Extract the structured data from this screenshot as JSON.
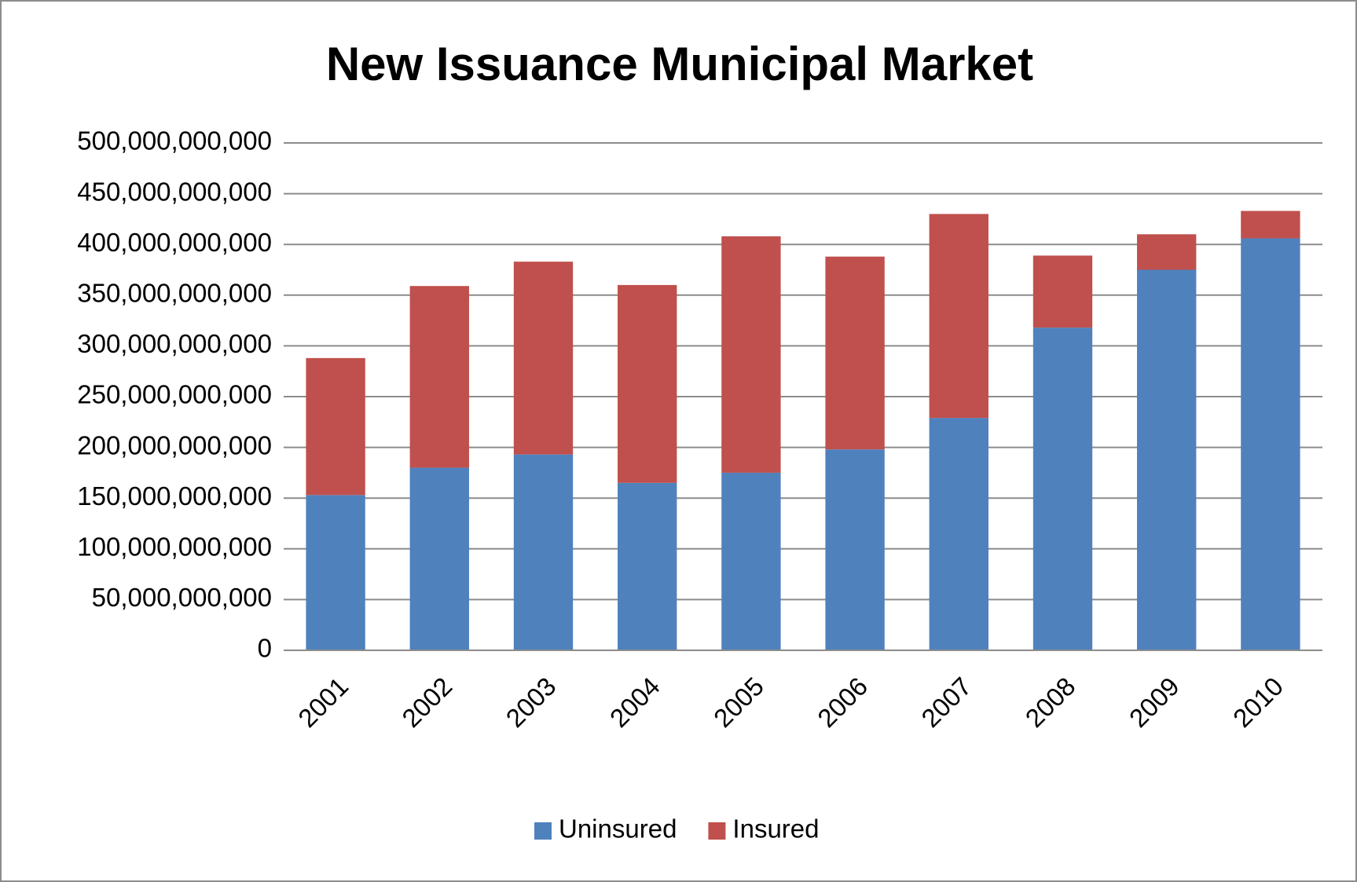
{
  "chart_data": {
    "type": "stacked_bar",
    "title": "New Issuance Municipal Market",
    "categories": [
      "2001",
      "2002",
      "2003",
      "2004",
      "2005",
      "2006",
      "2007",
      "2008",
      "2009",
      "2010"
    ],
    "series": [
      {
        "name": "Uninsured",
        "color": "#4f81bd",
        "values": [
          153000000000,
          180000000000,
          193000000000,
          165000000000,
          175000000000,
          198000000000,
          229000000000,
          318000000000,
          375000000000,
          406000000000
        ]
      },
      {
        "name": "Insured",
        "color": "#c0504d",
        "values": [
          135000000000,
          179000000000,
          190000000000,
          195000000000,
          233000000000,
          190000000000,
          201000000000,
          71000000000,
          35000000000,
          27000000000
        ]
      }
    ],
    "ylim": [
      0,
      500000000000
    ],
    "yticks": [
      0,
      {
        "value": 50000000000,
        "label": "50,000,000,000"
      },
      {
        "value": 100000000000,
        "label": "100,000,000,000"
      },
      {
        "value": 150000000000,
        "label": "150,000,000,000"
      },
      {
        "value": 200000000000,
        "label": "200,000,000,000"
      },
      {
        "value": 250000000000,
        "label": "250,000,000,000"
      },
      {
        "value": 300000000000,
        "label": "300,000,000,000"
      },
      {
        "value": 350000000000,
        "label": "350,000,000,000"
      },
      {
        "value": 400000000000,
        "label": "400,000,000,000"
      },
      {
        "value": 450000000000,
        "label": "450,000,000,000"
      },
      {
        "value": 500000000000,
        "label": "500,000,000,000"
      }
    ],
    "grid": true,
    "legend": "bottom"
  }
}
